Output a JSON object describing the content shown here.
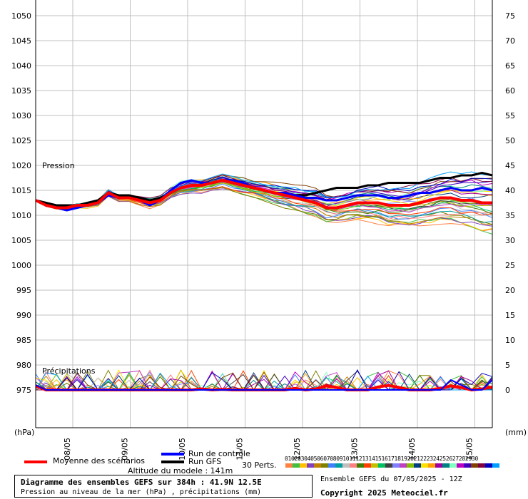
{
  "chart_data": {
    "type": "line",
    "title": "Diagramme des ensembles GEFS sur 384h : 41.9N 12.5E",
    "subtitle": "Pression au niveau de la mer (hPa) , précipitations (mm)",
    "left_axis": {
      "unit_label": "(hPa)",
      "ticks": [
        975,
        980,
        985,
        990,
        995,
        1000,
        1005,
        1010,
        1015,
        1020,
        1025,
        1030,
        1035,
        1040,
        1045,
        1050
      ]
    },
    "right_axis": {
      "unit_label": "(mm)",
      "ticks": [
        0,
        5,
        10,
        15,
        20,
        25,
        30,
        35,
        40,
        45,
        50,
        55,
        60,
        65,
        70,
        75
      ]
    },
    "x_axis": {
      "tick_labels": [
        "08/05",
        "09/05",
        "10/05",
        "11/05",
        "12/05",
        "13/05",
        "14/05",
        "15/05"
      ]
    },
    "annotations": {
      "pression": "Pression",
      "precip": "Précipitations"
    },
    "grid": true,
    "series": [
      {
        "name": "Moyenne des scénarios",
        "color": "#ff0000",
        "values": [
          1013,
          1012,
          1011.5,
          1011.5,
          1012,
          1012,
          1012.5,
          1014.5,
          1013.5,
          1013.5,
          1013,
          1012.5,
          1013,
          1014.5,
          1015.5,
          1016,
          1016,
          1016.5,
          1017,
          1016.5,
          1016,
          1015.5,
          1015,
          1014.5,
          1014,
          1013.5,
          1013,
          1012.5,
          1011.5,
          1011.5,
          1012,
          1012.5,
          1012.5,
          1012.5,
          1012,
          1012,
          1012,
          1012.5,
          1013,
          1013.5,
          1013.5,
          1013,
          1013,
          1012.5,
          1012.5
        ]
      },
      {
        "name": "Run de contrôle",
        "color": "#0000ff",
        "values": [
          1013,
          1012,
          1011.5,
          1011,
          1011.5,
          1012,
          1012.5,
          1014,
          1013.5,
          1013.5,
          1013,
          1012,
          1013,
          1015,
          1016.5,
          1017,
          1016.5,
          1016.5,
          1017,
          1017,
          1016.5,
          1015.5,
          1015,
          1014.5,
          1014.5,
          1014,
          1013.5,
          1013.5,
          1013,
          1013,
          1013.5,
          1014,
          1014,
          1014,
          1013.5,
          1013.5,
          1014,
          1014.5,
          1014.5,
          1015,
          1015.5,
          1015,
          1015,
          1015.5,
          1015
        ]
      },
      {
        "name": "Run GFS",
        "color": "#000000",
        "values": [
          1013,
          1012.5,
          1012,
          1012,
          1012,
          1012.5,
          1013,
          1014.5,
          1014,
          1014,
          1013.5,
          1013,
          1013.5,
          1014.5,
          1015.5,
          1016,
          1016,
          1016.5,
          1017,
          1017,
          1016.5,
          1015.5,
          1015,
          1014.5,
          1014,
          1014,
          1014,
          1014.5,
          1015,
          1015.5,
          1015.5,
          1015.5,
          1016,
          1016,
          1016.5,
          1016.5,
          1016.5,
          1016.5,
          1017,
          1017.5,
          1017.5,
          1018,
          1018,
          1018.5,
          1018
        ]
      }
    ],
    "precip_series": [
      {
        "name": "Moyenne des scénarios",
        "color": "#ff0000",
        "values": [
          0.8,
          0,
          0,
          0,
          0,
          0,
          0,
          0,
          0,
          0,
          0,
          0,
          0,
          0,
          0,
          0,
          0.2,
          0,
          0.1,
          0,
          0,
          0,
          0,
          0,
          0,
          0.3,
          0,
          0.2,
          0.8,
          0.5,
          0,
          0,
          0,
          0.6,
          0.9,
          0.5,
          0,
          0,
          0,
          0.3,
          0.8,
          0.5,
          0,
          0.2,
          0.6
        ]
      },
      {
        "name": "Run de contrôle",
        "color": "#0000ff",
        "values": [
          1,
          0,
          0,
          0,
          0,
          0,
          0,
          0,
          0,
          0,
          0,
          0,
          0,
          0,
          0,
          0,
          0,
          0,
          0,
          0,
          0,
          0,
          0,
          0,
          0,
          0,
          0,
          0,
          0,
          0,
          0,
          0,
          0,
          0,
          0,
          0,
          0,
          0,
          0,
          0,
          2,
          1,
          0,
          0,
          2
        ]
      }
    ],
    "members_label": "30 Perts.",
    "member_numbers": [
      "01",
      "02",
      "03",
      "04",
      "05",
      "06",
      "07",
      "08",
      "09",
      "10",
      "11",
      "12",
      "13",
      "14",
      "15",
      "16",
      "17",
      "18",
      "19",
      "20",
      "21",
      "22",
      "23",
      "24",
      "25",
      "26",
      "27",
      "28",
      "29",
      "30"
    ],
    "member_colors": [
      "#ff8040",
      "#40c040",
      "#ffc000",
      "#8040c0",
      "#c08000",
      "#808000",
      "#4080ff",
      "#00a0a0",
      "#c0c0c0",
      "#ff8080",
      "#408000",
      "#ff4000",
      "#c0c000",
      "#00c060",
      "#404040",
      "#8080ff",
      "#c040c0",
      "#80c000",
      "#004080",
      "#ffe000",
      "#ffa000",
      "#a000a0",
      "#008080",
      "#80ffc0",
      "#c000c0",
      "#4000c0",
      "#804000",
      "#800040",
      "#0000c0",
      "#00a0ff"
    ]
  },
  "legend": {
    "mean": "Moyenne des scénarios",
    "control": "Run de contrôle",
    "gfs": "Run GFS",
    "altitude": "Altitude du modele : 141m"
  },
  "footer": {
    "title": "Diagramme des ensembles GEFS sur 384h : 41.9N 12.5E",
    "subtitle": "Pression au niveau de la mer (hPa) , précipitations (mm)",
    "run_info": "Ensemble GEFS du 07/05/2025 - 12Z",
    "copyright": "Copyright 2025 Meteociel.fr"
  },
  "colors": {
    "mean": "#ff0000",
    "control": "#0000ff",
    "gfs": "#000000",
    "grid": "#c0c0c0"
  }
}
